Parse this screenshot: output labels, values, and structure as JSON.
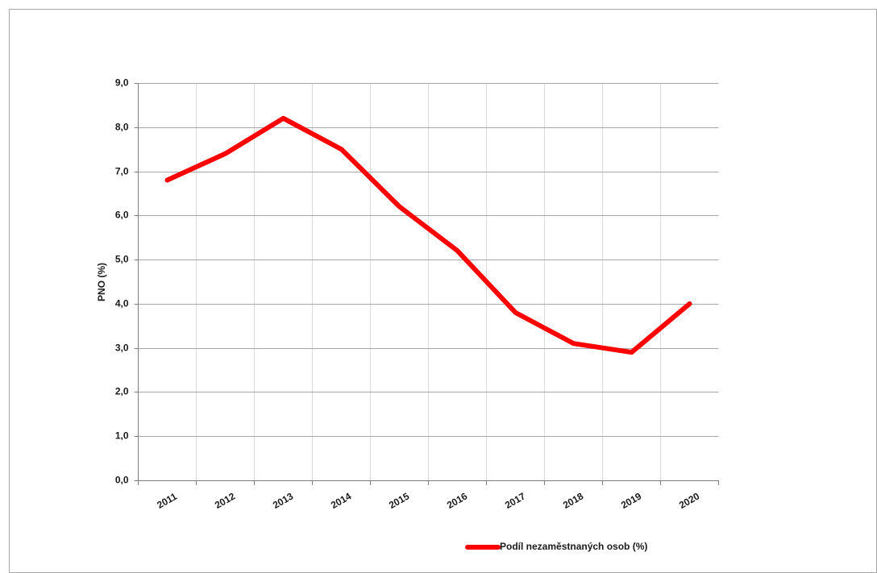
{
  "chart_data": {
    "type": "line",
    "categories": [
      "2011",
      "2012",
      "2013",
      "2014",
      "2015",
      "2016",
      "2017",
      "2018",
      "2019",
      "2020"
    ],
    "series": [
      {
        "name": "Podíl nezaměstnaných osob (%)",
        "color": "#ff0000",
        "values": [
          6.8,
          7.4,
          8.2,
          7.5,
          6.2,
          5.2,
          3.8,
          3.1,
          2.9,
          4.0
        ]
      }
    ],
    "y_label": "PNO (%)",
    "ylim": [
      0,
      9
    ],
    "yticks": [
      {
        "value": 0,
        "label": "0,0"
      },
      {
        "value": 1,
        "label": "1,0"
      },
      {
        "value": 2,
        "label": "2,0"
      },
      {
        "value": 3,
        "label": "3,0"
      },
      {
        "value": 4,
        "label": "4,0"
      },
      {
        "value": 5,
        "label": "5,0"
      },
      {
        "value": 6,
        "label": "6,0"
      },
      {
        "value": 7,
        "label": "7,0"
      },
      {
        "value": 8,
        "label": "8,0"
      },
      {
        "value": 9,
        "label": "9,0"
      }
    ],
    "grid": true
  }
}
